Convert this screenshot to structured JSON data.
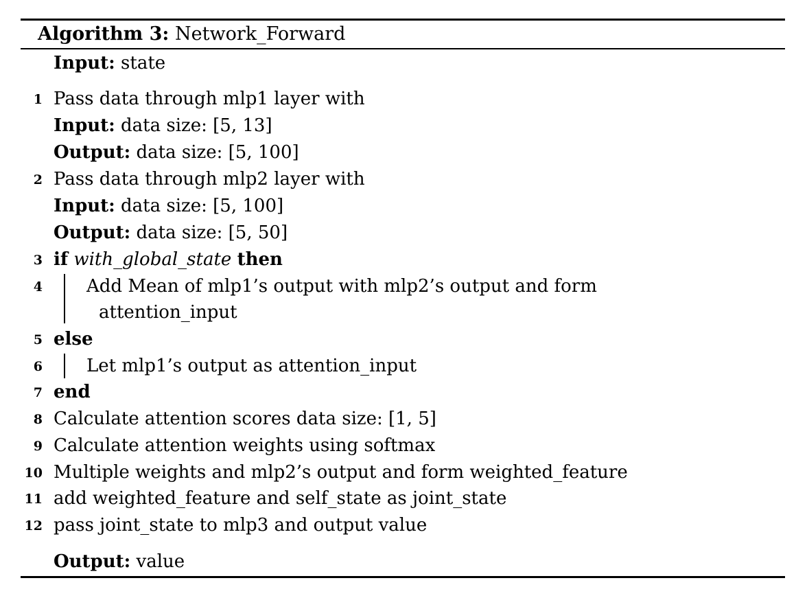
{
  "algorithm": {
    "caption_label": "Algorithm 3:",
    "caption_name": "Network_Forward",
    "input_label": "Input:",
    "input_value": "state",
    "output_label": "Output:",
    "output_value": "value",
    "lines": [
      {
        "num": "1",
        "text": "Pass data through mlp1 layer with"
      },
      {
        "label": "Input:",
        "text": "data size: [5, 13]"
      },
      {
        "label": "Output:",
        "text": "data size: [5, 100]"
      },
      {
        "num": "2",
        "text": "Pass data through mlp2 layer with"
      },
      {
        "label": "Input:",
        "text": "data size: [5, 100]"
      },
      {
        "label": "Output:",
        "text": "data size: [5, 50]"
      },
      {
        "num": "3",
        "kw1": "if",
        "cond": "with_global_state",
        "kw2": "then"
      },
      {
        "num": "4",
        "text": "Add Mean of mlp1’s output with mlp2’s output and form"
      },
      {
        "text": "attention_input"
      },
      {
        "num": "5",
        "kw1": "else"
      },
      {
        "num": "6",
        "text": "Let mlp1’s output as attention_input"
      },
      {
        "num": "7",
        "kw1": "end"
      },
      {
        "num": "8",
        "text": "Calculate attention scores data size: [1, 5]"
      },
      {
        "num": "9",
        "text": "Calculate attention weights using softmax"
      },
      {
        "num": "10",
        "text": "Multiple weights and mlp2’s output and form weighted_feature"
      },
      {
        "num": "11",
        "text": "add weighted_feature and self_state as joint_state"
      },
      {
        "num": "12",
        "text": "pass joint_state to mlp3 and output value"
      }
    ]
  }
}
